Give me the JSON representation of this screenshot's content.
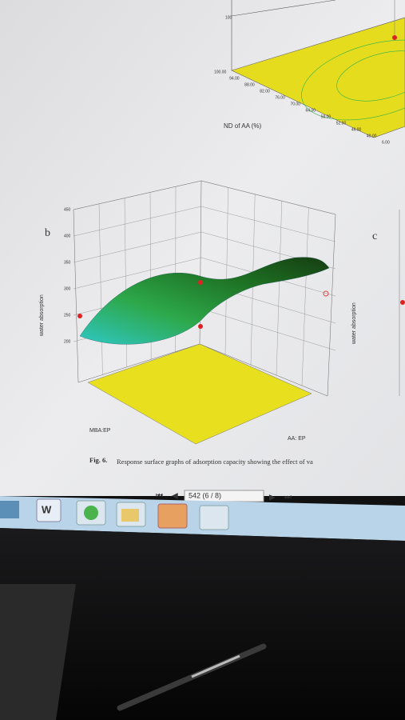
{
  "figure_a": {
    "axis_label": "ND of AA (%)",
    "z_tick": "100",
    "ticks": [
      "100.00",
      "94.00",
      "88.00",
      "82.00",
      "76.00",
      "70.00",
      "64.00",
      "58.00",
      "52.00",
      "46.00",
      "40.00",
      "6.00"
    ]
  },
  "figure_b": {
    "label": "b",
    "z_label": "water absorption",
    "z_ticks": [
      "450",
      "400",
      "350",
      "300",
      "250",
      "200"
    ],
    "x_label": "MBA:EP",
    "y_label": "AA: EP"
  },
  "figure_c": {
    "label": "c",
    "z_label": "water absorption"
  },
  "caption": {
    "label": "Fig. 6.",
    "text": "Response surface graphs of adsorption capacity showing the effect of va"
  },
  "toolbar": {
    "page": "542 (6 / 8)"
  }
}
